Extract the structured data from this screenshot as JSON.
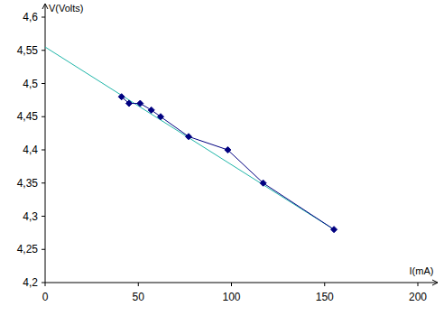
{
  "chart_data": {
    "type": "line",
    "x_label": "I(mA)",
    "y_label": "V(Volts)",
    "xlim": [
      0,
      200
    ],
    "xticks": [
      0,
      50,
      100,
      150,
      200
    ],
    "ylim": [
      4.2,
      4.6
    ],
    "yticks": [
      {
        "value": 4.2,
        "label": "4,2"
      },
      {
        "value": 4.25,
        "label": "4,25"
      },
      {
        "value": 4.3,
        "label": "4,3"
      },
      {
        "value": 4.35,
        "label": "4,35"
      },
      {
        "value": 4.4,
        "label": "4,4"
      },
      {
        "value": 4.45,
        "label": "4,45"
      },
      {
        "value": 4.5,
        "label": "4,5"
      },
      {
        "value": 4.55,
        "label": "4,55"
      },
      {
        "value": 4.6,
        "label": "4,6"
      }
    ],
    "grid": false,
    "series": [
      {
        "color": "#1fb5a8",
        "line_style": "solid",
        "marker": "none",
        "x": [
          0,
          155
        ],
        "values": [
          4.555,
          4.28
        ]
      },
      {
        "color": "#000080",
        "line_style": "solid",
        "marker": "diamond",
        "x": [
          41,
          45,
          51,
          57,
          62,
          77,
          98,
          117,
          155
        ],
        "values": [
          4.48,
          4.47,
          4.47,
          4.46,
          4.45,
          4.42,
          4.4,
          4.35,
          4.28
        ]
      }
    ]
  }
}
